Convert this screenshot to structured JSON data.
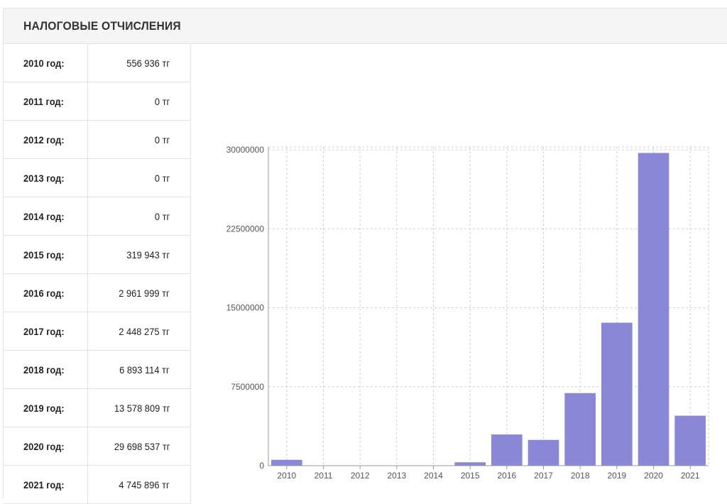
{
  "header": {
    "title": "НАЛОГОВЫЕ ОТЧИСЛЕНИЯ"
  },
  "table": {
    "rows": [
      {
        "year": "2010 год:",
        "value": "556 936 тг"
      },
      {
        "year": "2011 год:",
        "value": "0 тг"
      },
      {
        "year": "2012 год:",
        "value": "0 тг"
      },
      {
        "year": "2013 год:",
        "value": "0 тг"
      },
      {
        "year": "2014 год:",
        "value": "0 тг"
      },
      {
        "year": "2015 год:",
        "value": "319 943 тг"
      },
      {
        "year": "2016 год:",
        "value": "2 961 999 тг"
      },
      {
        "year": "2017 год:",
        "value": "2 448 275 тг"
      },
      {
        "year": "2018 год:",
        "value": "6 893 114 тг"
      },
      {
        "year": "2019 год:",
        "value": "13 578 809 тг"
      },
      {
        "year": "2020 год:",
        "value": "29 698 537 тг"
      },
      {
        "year": "2021 год:",
        "value": "4 745 896 тг"
      }
    ]
  },
  "colors": {
    "bar": "#8a87d6",
    "grid": "#cfcfcf",
    "axis": "#999999"
  },
  "chart_data": {
    "type": "bar",
    "categories": [
      "2010",
      "2011",
      "2012",
      "2013",
      "2014",
      "2015",
      "2016",
      "2017",
      "2018",
      "2019",
      "2020",
      "2021"
    ],
    "values": [
      556936,
      0,
      0,
      0,
      0,
      319943,
      2961999,
      2448275,
      6893114,
      13578809,
      29698537,
      4745896
    ],
    "yticks": [
      "0",
      "7500000",
      "15000000",
      "22500000",
      "30000000"
    ],
    "ylim": [
      0,
      30000000
    ],
    "grid": true,
    "title": "",
    "xlabel": "",
    "ylabel": ""
  }
}
